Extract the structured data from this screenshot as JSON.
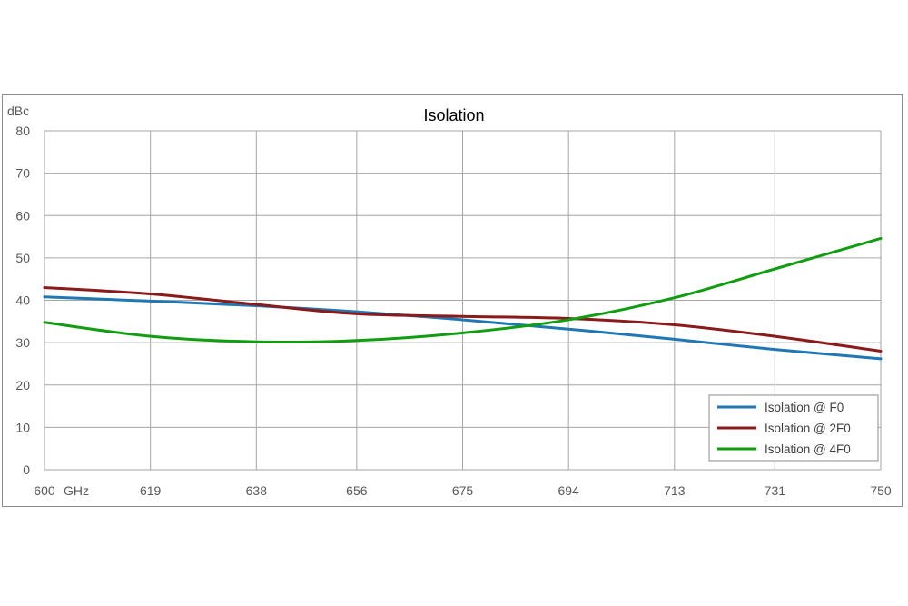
{
  "chart_data": {
    "type": "line",
    "title": "Isolation",
    "ylabel": "dBc",
    "xlabel": "",
    "x_unit_label": "GHz",
    "xlim": [
      600,
      750
    ],
    "ylim": [
      0,
      80
    ],
    "x_ticks": [
      600,
      619,
      638,
      656,
      675,
      694,
      713,
      731,
      750
    ],
    "y_ticks": [
      0,
      10,
      20,
      30,
      40,
      50,
      60,
      70,
      80
    ],
    "grid": true,
    "legend_position": "bottom-right",
    "series": [
      {
        "name": "Isolation @ F0",
        "color": "#1f77b4",
        "x": [
          600,
          619,
          638,
          656,
          675,
          694,
          713,
          731,
          750
        ],
        "y": [
          40.8,
          39.8,
          38.7,
          37.3,
          35.4,
          33.2,
          30.8,
          28.4,
          26.2
        ]
      },
      {
        "name": "Isolation @ 2F0",
        "color": "#8b1a1a",
        "x": [
          600,
          619,
          638,
          656,
          675,
          694,
          713,
          731,
          750
        ],
        "y": [
          43.0,
          41.5,
          39.0,
          36.8,
          36.2,
          35.7,
          34.2,
          31.5,
          28.0
        ]
      },
      {
        "name": "Isolation @ 4F0",
        "color": "#109e10",
        "x": [
          600,
          619,
          638,
          656,
          675,
          694,
          713,
          731,
          750
        ],
        "y": [
          34.8,
          31.5,
          30.2,
          30.5,
          32.3,
          35.4,
          40.6,
          47.4,
          54.6
        ]
      }
    ]
  }
}
